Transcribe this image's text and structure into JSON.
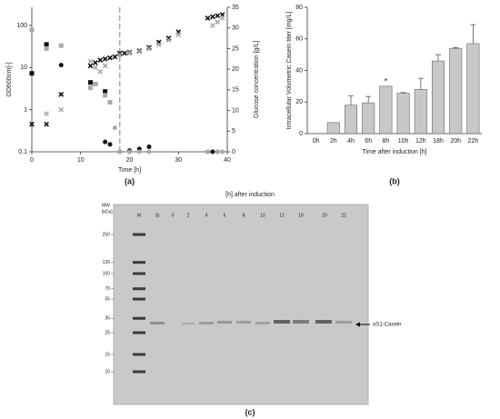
{
  "chart_data": [
    {
      "type": "scatter",
      "panel": "(a)",
      "x_label": "Time [h]",
      "y_label": "OD600nm[-]",
      "y2_label": "Glucose concentration [g/L]",
      "xlim": [
        0,
        40
      ],
      "xticks": [
        0,
        10,
        20,
        30,
        40
      ],
      "ylim": [
        0.1,
        270
      ],
      "yticks": [
        0.1,
        1,
        10,
        100
      ],
      "ylog": true,
      "y2lim": [
        0,
        35
      ],
      "y2ticks": [
        0,
        5,
        10,
        15,
        20,
        25,
        30,
        35
      ],
      "vline": 18,
      "series": [
        {
          "name": "OD black",
          "marker": "x",
          "color": "#111111",
          "x": [
            0,
            3,
            6,
            12,
            13,
            14,
            15,
            16,
            17,
            18,
            19,
            20,
            22,
            24,
            26,
            28,
            30,
            36,
            37,
            38,
            39
          ],
          "values": [
            0.45,
            0.45,
            2.3,
            11,
            13,
            15,
            16,
            17,
            18,
            22,
            22,
            23,
            25,
            30,
            40,
            50,
            70,
            150,
            160,
            170,
            180
          ]
        },
        {
          "name": "OD gray",
          "marker": "x",
          "color": "#aaaaaa",
          "x": [
            3,
            6,
            12,
            13,
            14,
            15,
            18,
            20,
            22,
            24,
            26,
            28,
            30,
            37,
            38,
            39
          ],
          "values": [
            0.8,
            1,
            14,
            10,
            8,
            11,
            20,
            22,
            24,
            28,
            35,
            45,
            60,
            100,
            120,
            150
          ]
        },
        {
          "name": "Glucose black squares",
          "marker": "square",
          "color": "#111111",
          "axis": "y2",
          "x": [
            0,
            3,
            12,
            13,
            15
          ],
          "values": [
            19,
            26,
            16.8,
            16.4,
            14.6
          ]
        },
        {
          "name": "Glucose gray squares",
          "marker": "square",
          "color": "#aaaaaa",
          "axis": "y2",
          "x": [
            0,
            3,
            6,
            12,
            13,
            15,
            16
          ],
          "values": [
            29.5,
            25,
            25.7,
            15.5,
            16.4,
            13.7,
            12
          ]
        },
        {
          "name": "Glucose black circles",
          "marker": "circle",
          "color": "#111111",
          "axis": "y2",
          "x": [
            6,
            15,
            16,
            18,
            20,
            22,
            24,
            36,
            37,
            38
          ],
          "values": [
            21,
            2.4,
            1.8,
            0,
            0.3,
            0.7,
            1.2,
            0,
            0,
            0
          ]
        },
        {
          "name": "Glucose gray circles",
          "marker": "circle",
          "color": "#aaaaaa",
          "axis": "y2",
          "x": [
            17,
            18,
            20,
            22,
            24,
            36,
            38,
            39
          ],
          "values": [
            5.8,
            0,
            0,
            0,
            0,
            0,
            0,
            0
          ]
        }
      ]
    },
    {
      "type": "bar",
      "panel": "(b)",
      "x_label": "Time after induction [h]",
      "y_label": "Intracellular Volumetric Casein titer [mg/L]",
      "categories": [
        "0h",
        "2h",
        "4h",
        "6h",
        "8h",
        "10h",
        "12h",
        "18h",
        "20h",
        "22h"
      ],
      "values": [
        0,
        7,
        18,
        19.5,
        30,
        25.5,
        28,
        46,
        54,
        57
      ],
      "errors": [
        0,
        0,
        6,
        4,
        0,
        0.5,
        7,
        4,
        0.5,
        12
      ],
      "color": "#c8c8c8",
      "ylim": [
        0,
        80
      ],
      "yticks": [
        0,
        20,
        40,
        60,
        80
      ],
      "annotations": [
        {
          "text": "*",
          "x": "8h"
        }
      ]
    }
  ],
  "gel": {
    "title": "[h] after induction",
    "panel": "(c)",
    "mw_label": [
      "MW",
      "[kDa]"
    ],
    "mw": [
      250,
      130,
      100,
      70,
      55,
      35,
      25,
      15,
      10
    ],
    "lanes": [
      "M",
      "St",
      "0",
      "2",
      "4",
      "6",
      "8",
      "10",
      "12",
      "18",
      "20",
      "22"
    ],
    "band_label": "αS1-Casein"
  }
}
